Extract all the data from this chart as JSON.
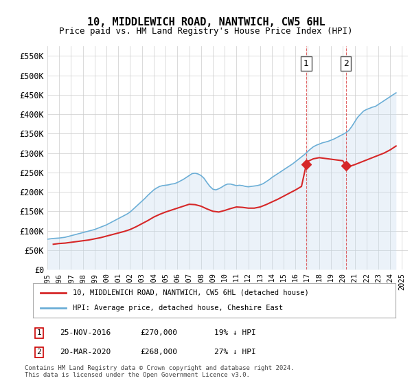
{
  "title": "10, MIDDLEWICH ROAD, NANTWICH, CW5 6HL",
  "subtitle": "Price paid vs. HM Land Registry's House Price Index (HPI)",
  "hpi_label": "HPI: Average price, detached house, Cheshire East",
  "price_label": "10, MIDDLEWICH ROAD, NANTWICH, CW5 6HL (detached house)",
  "footer": "Contains HM Land Registry data © Crown copyright and database right 2024.\nThis data is licensed under the Open Government Licence v3.0.",
  "ylim": [
    0,
    575000
  ],
  "yticks": [
    0,
    50000,
    100000,
    150000,
    200000,
    250000,
    300000,
    350000,
    400000,
    450000,
    500000,
    550000
  ],
  "ytick_labels": [
    "£0",
    "£50K",
    "£100K",
    "£150K",
    "£200K",
    "£250K",
    "£300K",
    "£350K",
    "£400K",
    "£450K",
    "£500K",
    "£550K"
  ],
  "xlim_start": 1995.0,
  "xlim_end": 2025.5,
  "xticks": [
    1995,
    1996,
    1997,
    1998,
    1999,
    2000,
    2001,
    2002,
    2003,
    2004,
    2005,
    2006,
    2007,
    2008,
    2009,
    2010,
    2011,
    2012,
    2013,
    2014,
    2015,
    2016,
    2017,
    2018,
    2019,
    2020,
    2021,
    2022,
    2023,
    2024,
    2025
  ],
  "sale1_x": 2016.9,
  "sale1_y": 270000,
  "sale1_label": "1",
  "sale2_x": 2020.25,
  "sale2_y": 268000,
  "sale2_label": "2",
  "annotation1": "1    25-NOV-2016        £270,000        19% ↓ HPI",
  "annotation2": "2    20-MAR-2020        £268,000        27% ↓ HPI",
  "hpi_color": "#6baed6",
  "price_color": "#d62728",
  "sale_marker_color": "#d62728",
  "shade_color": "#c6dbef",
  "dashed_color": "#d62728",
  "background_color": "#ffffff",
  "grid_color": "#cccccc",
  "hpi_data_x": [
    1995.0,
    1995.25,
    1995.5,
    1995.75,
    1996.0,
    1996.25,
    1996.5,
    1996.75,
    1997.0,
    1997.25,
    1997.5,
    1997.75,
    1998.0,
    1998.25,
    1998.5,
    1998.75,
    1999.0,
    1999.25,
    1999.5,
    1999.75,
    2000.0,
    2000.25,
    2000.5,
    2000.75,
    2001.0,
    2001.25,
    2001.5,
    2001.75,
    2002.0,
    2002.25,
    2002.5,
    2002.75,
    2003.0,
    2003.25,
    2003.5,
    2003.75,
    2004.0,
    2004.25,
    2004.5,
    2004.75,
    2005.0,
    2005.25,
    2005.5,
    2005.75,
    2006.0,
    2006.25,
    2006.5,
    2006.75,
    2007.0,
    2007.25,
    2007.5,
    2007.75,
    2008.0,
    2008.25,
    2008.5,
    2008.75,
    2009.0,
    2009.25,
    2009.5,
    2009.75,
    2010.0,
    2010.25,
    2010.5,
    2010.75,
    2011.0,
    2011.25,
    2011.5,
    2011.75,
    2012.0,
    2012.25,
    2012.5,
    2012.75,
    2013.0,
    2013.25,
    2013.5,
    2013.75,
    2014.0,
    2014.25,
    2014.5,
    2014.75,
    2015.0,
    2015.25,
    2015.5,
    2015.75,
    2016.0,
    2016.25,
    2016.5,
    2016.75,
    2017.0,
    2017.25,
    2017.5,
    2017.75,
    2018.0,
    2018.25,
    2018.5,
    2018.75,
    2019.0,
    2019.25,
    2019.5,
    2019.75,
    2020.0,
    2020.25,
    2020.5,
    2020.75,
    2021.0,
    2021.25,
    2021.5,
    2021.75,
    2022.0,
    2022.25,
    2022.5,
    2022.75,
    2023.0,
    2023.25,
    2023.5,
    2023.75,
    2024.0,
    2024.25,
    2024.5
  ],
  "hpi_data_y": [
    78000,
    79000,
    80000,
    80500,
    81000,
    82000,
    83000,
    85000,
    87000,
    89000,
    91000,
    93000,
    95000,
    97000,
    99000,
    101000,
    103000,
    106000,
    109000,
    112000,
    115000,
    119000,
    123000,
    127000,
    131000,
    135000,
    139000,
    143000,
    148000,
    155000,
    162000,
    169000,
    176000,
    183000,
    191000,
    198000,
    205000,
    210000,
    214000,
    216000,
    217000,
    218000,
    220000,
    221000,
    224000,
    228000,
    232000,
    237000,
    242000,
    247000,
    248000,
    246000,
    242000,
    235000,
    224000,
    214000,
    207000,
    205000,
    208000,
    212000,
    217000,
    220000,
    220000,
    218000,
    216000,
    217000,
    216000,
    214000,
    213000,
    214000,
    215000,
    216000,
    218000,
    221000,
    226000,
    231000,
    237000,
    242000,
    247000,
    252000,
    257000,
    262000,
    267000,
    272000,
    278000,
    284000,
    290000,
    296000,
    303000,
    310000,
    316000,
    320000,
    323000,
    326000,
    328000,
    330000,
    333000,
    336000,
    340000,
    344000,
    348000,
    352000,
    358000,
    368000,
    380000,
    392000,
    400000,
    408000,
    412000,
    415000,
    418000,
    420000,
    425000,
    430000,
    435000,
    440000,
    445000,
    450000,
    455000
  ],
  "price_data_x": [
    1995.5,
    1996.0,
    1996.5,
    1997.0,
    1997.5,
    1998.0,
    1998.5,
    1999.0,
    1999.5,
    2000.0,
    2000.5,
    2001.0,
    2001.5,
    2002.0,
    2002.5,
    2003.0,
    2003.5,
    2004.0,
    2004.5,
    2005.0,
    2005.5,
    2006.0,
    2006.5,
    2007.0,
    2007.5,
    2008.0,
    2008.5,
    2009.0,
    2009.5,
    2010.0,
    2010.5,
    2011.0,
    2011.5,
    2012.0,
    2012.5,
    2013.0,
    2013.5,
    2014.0,
    2014.5,
    2015.0,
    2015.5,
    2016.0,
    2016.5,
    2016.9,
    2017.0,
    2017.5,
    2018.0,
    2018.5,
    2019.0,
    2019.5,
    2020.0,
    2020.25,
    2020.5,
    2021.0,
    2021.5,
    2022.0,
    2022.5,
    2023.0,
    2023.5,
    2024.0,
    2024.5
  ],
  "price_data_y": [
    65000,
    67000,
    68000,
    70000,
    72000,
    74000,
    76000,
    79000,
    82000,
    86000,
    90000,
    94000,
    98000,
    103000,
    110000,
    118000,
    126000,
    135000,
    142000,
    148000,
    153000,
    158000,
    163000,
    168000,
    167000,
    163000,
    156000,
    150000,
    148000,
    152000,
    157000,
    161000,
    160000,
    158000,
    158000,
    161000,
    167000,
    174000,
    181000,
    189000,
    197000,
    205000,
    214000,
    270000,
    278000,
    285000,
    288000,
    286000,
    284000,
    282000,
    280000,
    268000,
    265000,
    270000,
    276000,
    282000,
    288000,
    294000,
    300000,
    308000,
    318000
  ]
}
